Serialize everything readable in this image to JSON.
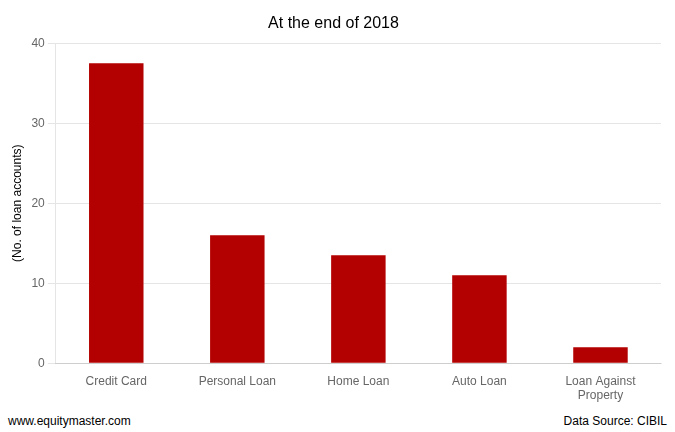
{
  "chart_data": {
    "type": "bar",
    "title": "At the end of 2018",
    "categories": [
      "Credit Card",
      "Personal Loan",
      "Home Loan",
      "Auto Loan",
      "Loan Against\nProperty"
    ],
    "values": [
      37.5,
      16.0,
      13.5,
      11.0,
      2.0
    ],
    "color": "#B30000",
    "ylabel": "(No. of loan accounts)",
    "ylim": [
      0,
      40
    ],
    "yticks": [
      0,
      10,
      20,
      30,
      40
    ],
    "grid": true,
    "annotations": [
      "www.equitymaster.com",
      "Data Source: CIBIL"
    ]
  }
}
